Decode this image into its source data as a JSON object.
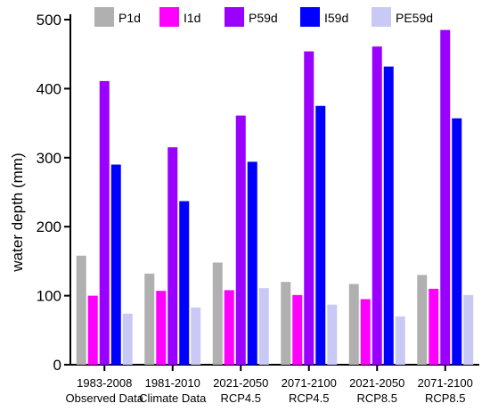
{
  "chart_data": {
    "type": "bar",
    "title": "",
    "xlabel": "",
    "ylabel": "water depth (mm)",
    "ylim": [
      0,
      500
    ],
    "yticks": [
      0,
      100,
      200,
      300,
      400,
      500
    ],
    "grid": false,
    "legend_position": "top",
    "categories": [
      [
        "1983-2008",
        "Observed Data"
      ],
      [
        "1981-2010",
        "Climate Data"
      ],
      [
        "2021-2050",
        "RCP4.5"
      ],
      [
        "2071-2100",
        "RCP4.5"
      ],
      [
        "2021-2050",
        "RCP8.5"
      ],
      [
        "2071-2100",
        "RCP8.5"
      ]
    ],
    "series": [
      {
        "name": "P1d",
        "color": "#b0b0b0",
        "values": [
          158,
          132,
          148,
          120,
          117,
          130
        ]
      },
      {
        "name": "I1d",
        "color": "#ff00ff",
        "values": [
          100,
          107,
          108,
          101,
          95,
          110
        ]
      },
      {
        "name": "P59d",
        "color": "#9900ff",
        "values": [
          411,
          315,
          361,
          454,
          461,
          485
        ]
      },
      {
        "name": "I59d",
        "color": "#0000ff",
        "values": [
          290,
          237,
          294,
          375,
          432,
          357
        ]
      },
      {
        "name": "PE59d",
        "color": "#c9c9f5",
        "values": [
          74,
          83,
          111,
          87,
          70,
          101
        ]
      }
    ]
  }
}
